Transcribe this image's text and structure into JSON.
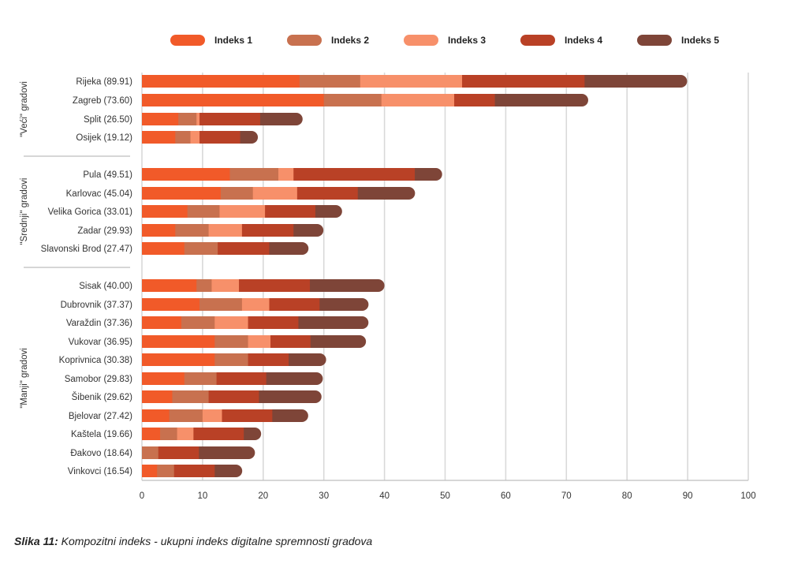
{
  "chart_data": {
    "type": "bar",
    "orientation": "horizontal",
    "stacked": true,
    "legend_position": "top",
    "grid": true,
    "xlim": [
      0,
      100
    ],
    "xticks": [
      0,
      10,
      20,
      30,
      40,
      50,
      60,
      70,
      80,
      90,
      100
    ],
    "categories": [
      "Rijeka (89.91)",
      "Zagreb (73.60)",
      "Split (26.50)",
      "Osijek (19.12)",
      "Pula (49.51)",
      "Karlovac (45.04)",
      "Velika Gorica (33.01)",
      "Zadar (29.93)",
      "Slavonski Brod (27.47)",
      "Sisak (40.00)",
      "Dubrovnik (37.37)",
      "Varaždin (37.36)",
      "Vukovar (36.95)",
      "Koprivnica (30.38)",
      "Samobor (29.83)",
      "Šibenik (29.62)",
      "Bjelovar (27.42)",
      "Kaštela (19.66)",
      "Đakovo (18.64)",
      "Vinkovci (16.54)"
    ],
    "groups": [
      {
        "label": "\"Veći\" gradovi",
        "count": 4
      },
      {
        "label": "\"Srednji\" gradovi",
        "count": 5
      },
      {
        "label": "\"Manji\" gradovi",
        "count": 11
      }
    ],
    "series": [
      {
        "name": "Indeks 1",
        "color": "#f15a29",
        "values": [
          26,
          30,
          6,
          5.5,
          14.5,
          13,
          7.5,
          5.5,
          7,
          9,
          9.5,
          6.5,
          12,
          12,
          7,
          5,
          4.5,
          3,
          0,
          2.5
        ]
      },
      {
        "name": "Indeks 2",
        "color": "#c8714f",
        "values": [
          10,
          9.5,
          3,
          2.5,
          8,
          5.3,
          5.3,
          5.5,
          5.5,
          2.5,
          7,
          5.5,
          5.5,
          5.5,
          5.3,
          6,
          5.5,
          2.8,
          2.7,
          2.8
        ]
      },
      {
        "name": "Indeks 3",
        "color": "#f7906a",
        "values": [
          16.8,
          12,
          0.5,
          1.5,
          2.5,
          7.3,
          7.5,
          5.5,
          0,
          4.5,
          4.5,
          5.5,
          3.7,
          0,
          0,
          0,
          3.2,
          2.7,
          0,
          0
        ]
      },
      {
        "name": "Indeks 4",
        "color": "#b94126",
        "values": [
          20.2,
          6.7,
          10,
          6.7,
          20,
          10,
          8.3,
          8.5,
          8.5,
          11.7,
          8.3,
          8.3,
          6.6,
          6.7,
          8.2,
          8.3,
          8.3,
          8.3,
          6.7,
          6.7
        ]
      },
      {
        "name": "Indeks 5",
        "color": "#7e4538",
        "values": [
          16.91,
          15.4,
          7,
          2.92,
          4.51,
          9.44,
          4.41,
          4.93,
          6.47,
          12.3,
          8.07,
          11.56,
          9.15,
          6.18,
          9.33,
          10.32,
          5.92,
          2.86,
          9.24,
          4.54
        ]
      }
    ]
  },
  "caption": {
    "label": "Slika 11:",
    "text": " Kompozitni indeks - ukupni indeks digitalne spremnosti gradova"
  }
}
